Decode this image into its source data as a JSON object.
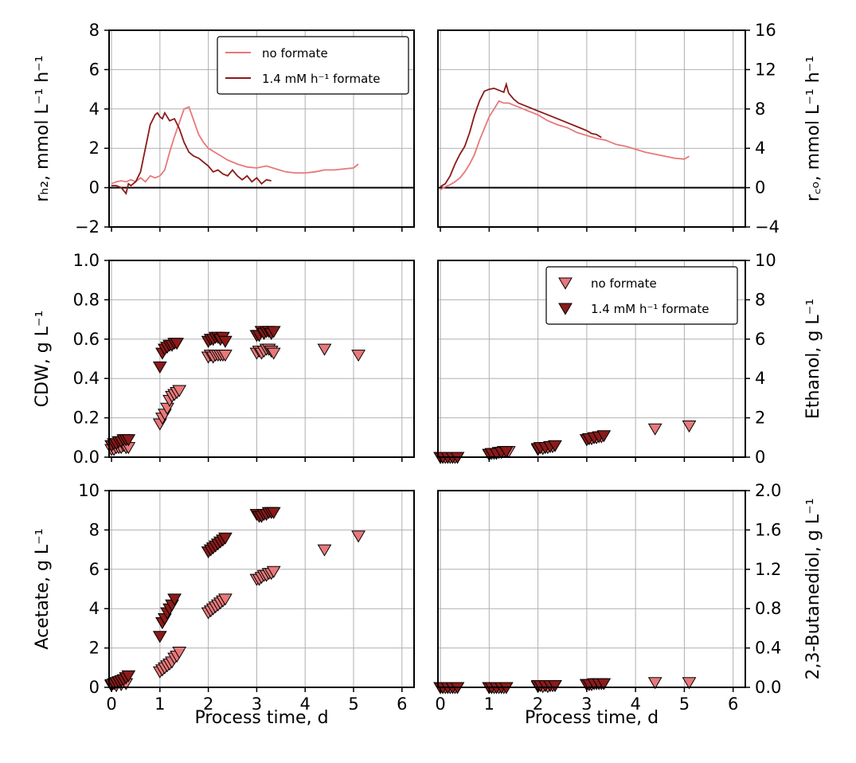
{
  "figure": {
    "xlabel": "Process time, d",
    "xticks": [
      0,
      1,
      2,
      3,
      4,
      5,
      6
    ],
    "xlim": [
      -0.05,
      6.25
    ],
    "series_names": [
      "no formate",
      "1.4 mM h⁻¹ formate"
    ],
    "colors": {
      "no_formate": "#e8787a",
      "formate": "#8b1a1a",
      "axis": "#000000",
      "grid": "#b0b0b0"
    }
  },
  "chart_data": [
    {
      "id": "rH2",
      "type": "line",
      "position": "top-left",
      "ylabel": "rₕ₂, mmol L⁻¹ h⁻¹",
      "ylim": [
        -2,
        8
      ],
      "yticks": [
        -2,
        0,
        2,
        4,
        6,
        8
      ],
      "ytick_labels": [
        "−2",
        "0",
        "2",
        "4",
        "6",
        "8"
      ],
      "zero_line": true,
      "grid": true,
      "legend": "top-right",
      "series": [
        {
          "name": "no formate",
          "x": [
            0,
            0.1,
            0.2,
            0.3,
            0.4,
            0.5,
            0.6,
            0.7,
            0.8,
            0.9,
            1.0,
            1.1,
            1.2,
            1.3,
            1.4,
            1.5,
            1.6,
            1.7,
            1.8,
            1.9,
            2.0,
            2.2,
            2.4,
            2.6,
            2.8,
            3.0,
            3.2,
            3.4,
            3.6,
            3.8,
            4.0,
            4.2,
            4.4,
            4.6,
            4.8,
            5.0,
            5.1
          ],
          "y": [
            0.2,
            0.3,
            0.35,
            0.3,
            0.4,
            0.3,
            0.5,
            0.3,
            0.6,
            0.5,
            0.6,
            0.9,
            1.8,
            2.6,
            3.3,
            4.0,
            4.1,
            3.4,
            2.7,
            2.3,
            2.0,
            1.7,
            1.4,
            1.2,
            1.05,
            1.0,
            1.1,
            0.95,
            0.8,
            0.75,
            0.75,
            0.8,
            0.9,
            0.9,
            0.95,
            1.0,
            1.2
          ]
        },
        {
          "name": "1.4 mM h⁻¹ formate",
          "x": [
            0,
            0.1,
            0.2,
            0.3,
            0.35,
            0.4,
            0.5,
            0.6,
            0.7,
            0.8,
            0.9,
            0.95,
            1.0,
            1.05,
            1.1,
            1.2,
            1.3,
            1.4,
            1.5,
            1.6,
            1.7,
            1.8,
            1.9,
            2.0,
            2.1,
            2.2,
            2.3,
            2.4,
            2.5,
            2.6,
            2.7,
            2.8,
            2.9,
            3.0,
            3.1,
            3.2,
            3.3
          ],
          "y": [
            0.1,
            0.1,
            0.0,
            -0.3,
            0.2,
            0.1,
            0.3,
            0.8,
            2.0,
            3.2,
            3.7,
            3.8,
            3.6,
            3.5,
            3.8,
            3.4,
            3.5,
            3.0,
            2.3,
            1.8,
            1.6,
            1.5,
            1.3,
            1.1,
            0.8,
            0.9,
            0.7,
            0.6,
            0.9,
            0.6,
            0.4,
            0.6,
            0.3,
            0.5,
            0.2,
            0.4,
            0.35
          ]
        }
      ]
    },
    {
      "id": "rCO",
      "type": "line",
      "position": "top-right",
      "ylabel": "r꜀ₒ, mmol L⁻¹ h⁻¹",
      "ylim": [
        -4,
        16
      ],
      "yticks": [
        -4,
        0,
        4,
        8,
        12,
        16
      ],
      "ytick_labels": [
        "−4",
        "0",
        "4",
        "8",
        "12",
        "16"
      ],
      "zero_line": true,
      "grid": true,
      "series": [
        {
          "name": "no formate",
          "x": [
            0,
            0.1,
            0.2,
            0.3,
            0.4,
            0.5,
            0.6,
            0.7,
            0.8,
            0.9,
            1.0,
            1.1,
            1.2,
            1.3,
            1.4,
            1.5,
            1.6,
            1.8,
            2.0,
            2.2,
            2.4,
            2.6,
            2.8,
            3.0,
            3.2,
            3.4,
            3.6,
            3.8,
            4.0,
            4.2,
            4.4,
            4.6,
            4.8,
            5.0,
            5.1
          ],
          "y": [
            -0.2,
            0.1,
            0.3,
            0.6,
            1.0,
            1.6,
            2.4,
            3.4,
            4.8,
            6.0,
            7.2,
            8.0,
            8.8,
            8.6,
            8.6,
            8.4,
            8.2,
            7.8,
            7.4,
            6.8,
            6.4,
            6.1,
            5.6,
            5.3,
            5.0,
            4.8,
            4.4,
            4.2,
            3.9,
            3.6,
            3.4,
            3.2,
            3.0,
            2.9,
            3.2
          ]
        },
        {
          "name": "1.4 mM h⁻¹ formate",
          "x": [
            0,
            0.1,
            0.2,
            0.3,
            0.4,
            0.5,
            0.6,
            0.7,
            0.8,
            0.9,
            1.0,
            1.1,
            1.2,
            1.3,
            1.35,
            1.4,
            1.5,
            1.6,
            1.8,
            2.0,
            2.2,
            2.4,
            2.6,
            2.8,
            3.0,
            3.1,
            3.2,
            3.3
          ],
          "y": [
            0.1,
            0.4,
            1.2,
            2.4,
            3.4,
            4.2,
            5.6,
            7.4,
            8.8,
            9.8,
            10.0,
            10.1,
            9.9,
            9.7,
            10.5,
            9.6,
            9.0,
            8.6,
            8.2,
            7.8,
            7.4,
            7.0,
            6.6,
            6.2,
            5.8,
            5.5,
            5.4,
            5.1
          ]
        }
      ]
    },
    {
      "id": "CDW",
      "type": "scatter",
      "position": "middle-left",
      "ylabel": "CDW, g L⁻¹",
      "ylim": [
        0,
        1
      ],
      "yticks": [
        0,
        0.2,
        0.4,
        0.6,
        0.8,
        1.0
      ],
      "ytick_labels": [
        "0.0",
        "0.2",
        "0.4",
        "0.6",
        "0.8",
        "1.0"
      ],
      "grid": true,
      "series": [
        {
          "name": "no formate",
          "x": [
            0.0,
            0.05,
            0.1,
            0.15,
            0.2,
            0.25,
            0.3,
            0.35,
            1.0,
            1.05,
            1.1,
            1.15,
            1.2,
            1.25,
            1.3,
            1.35,
            1.4,
            2.0,
            2.05,
            2.1,
            2.15,
            2.2,
            2.25,
            2.3,
            2.35,
            3.0,
            3.05,
            3.1,
            3.15,
            3.2,
            3.25,
            3.3,
            3.35,
            4.4,
            5.1
          ],
          "y": [
            0.04,
            0.04,
            0.05,
            0.05,
            0.05,
            0.06,
            0.05,
            0.05,
            0.17,
            0.2,
            0.22,
            0.25,
            0.29,
            0.31,
            0.32,
            0.33,
            0.34,
            0.51,
            0.52,
            0.51,
            0.52,
            0.52,
            0.52,
            0.52,
            0.52,
            0.53,
            0.54,
            0.53,
            0.54,
            0.55,
            0.55,
            0.54,
            0.53,
            0.55,
            0.52
          ]
        },
        {
          "name": "1.4 mM h⁻¹ formate",
          "x": [
            0.0,
            0.05,
            0.1,
            0.15,
            0.2,
            0.25,
            0.3,
            0.35,
            1.0,
            1.05,
            1.1,
            1.15,
            1.2,
            1.25,
            1.3,
            1.35,
            2.0,
            2.05,
            2.1,
            2.15,
            2.2,
            2.25,
            2.3,
            2.35,
            3.0,
            3.05,
            3.1,
            3.15,
            3.2,
            3.25,
            3.3,
            3.35
          ],
          "y": [
            0.06,
            0.07,
            0.07,
            0.08,
            0.08,
            0.09,
            0.09,
            0.09,
            0.46,
            0.53,
            0.55,
            0.56,
            0.57,
            0.57,
            0.58,
            0.58,
            0.59,
            0.6,
            0.6,
            0.61,
            0.61,
            0.6,
            0.61,
            0.59,
            0.62,
            0.62,
            0.64,
            0.63,
            0.64,
            0.64,
            0.63,
            0.64
          ]
        }
      ]
    },
    {
      "id": "Ethanol",
      "type": "scatter",
      "position": "middle-right",
      "ylabel": "Ethanol, g L⁻¹",
      "ylim": [
        0,
        10
      ],
      "yticks": [
        0,
        2,
        4,
        6,
        8,
        10
      ],
      "ytick_labels": [
        "0",
        "2",
        "4",
        "6",
        "8",
        "10"
      ],
      "grid": true,
      "legend": "top-right",
      "series": [
        {
          "name": "no formate",
          "x": [
            0.0,
            0.1,
            0.2,
            0.3,
            1.0,
            1.1,
            1.2,
            1.3,
            1.4,
            2.0,
            2.1,
            2.2,
            2.3,
            3.0,
            3.1,
            3.2,
            3.3,
            4.4,
            5.1
          ],
          "y": [
            0.0,
            0.0,
            0.0,
            0.0,
            0.15,
            0.2,
            0.25,
            0.3,
            0.3,
            0.4,
            0.45,
            0.5,
            0.55,
            0.9,
            0.95,
            1.0,
            1.05,
            1.45,
            1.6
          ]
        },
        {
          "name": "1.4 mM h⁻¹ formate",
          "x": [
            0.0,
            0.05,
            0.15,
            0.25,
            0.35,
            1.0,
            1.05,
            1.15,
            1.25,
            1.35,
            2.0,
            2.05,
            2.15,
            2.25,
            2.35,
            3.0,
            3.05,
            3.15,
            3.25,
            3.35
          ],
          "y": [
            0.0,
            0.0,
            0.0,
            0.0,
            0.0,
            0.15,
            0.2,
            0.2,
            0.25,
            0.3,
            0.45,
            0.5,
            0.5,
            0.55,
            0.6,
            0.9,
            0.95,
            1.0,
            1.05,
            1.1
          ]
        }
      ]
    },
    {
      "id": "Acetate",
      "type": "scatter",
      "position": "bottom-left",
      "ylabel": "Acetate, g L⁻¹",
      "ylim": [
        0,
        10
      ],
      "yticks": [
        0,
        2,
        4,
        6,
        8,
        10
      ],
      "ytick_labels": [
        "0",
        "2",
        "4",
        "6",
        "8",
        "10"
      ],
      "grid": true,
      "series": [
        {
          "name": "no formate",
          "x": [
            0.0,
            0.1,
            0.2,
            0.3,
            1.0,
            1.05,
            1.1,
            1.15,
            1.2,
            1.25,
            1.3,
            1.35,
            1.4,
            2.0,
            2.05,
            2.1,
            2.15,
            2.2,
            2.25,
            2.3,
            2.35,
            3.0,
            3.05,
            3.1,
            3.15,
            3.2,
            3.25,
            3.3,
            3.35,
            4.4,
            5.1
          ],
          "y": [
            0.1,
            0.1,
            0.15,
            0.2,
            0.8,
            0.9,
            1.0,
            1.1,
            1.2,
            1.3,
            1.5,
            1.6,
            1.8,
            3.8,
            3.9,
            4.0,
            4.1,
            4.2,
            4.3,
            4.4,
            4.5,
            5.5,
            5.5,
            5.6,
            5.7,
            5.7,
            5.8,
            5.8,
            5.9,
            7.0,
            7.7
          ]
        },
        {
          "name": "1.4 mM h⁻¹ formate",
          "x": [
            0.0,
            0.05,
            0.1,
            0.15,
            0.2,
            0.25,
            0.3,
            0.35,
            1.0,
            1.05,
            1.1,
            1.15,
            1.2,
            1.25,
            1.3,
            2.0,
            2.05,
            2.1,
            2.15,
            2.2,
            2.25,
            2.3,
            2.35,
            3.0,
            3.05,
            3.1,
            3.15,
            3.2,
            3.25,
            3.3,
            3.35
          ],
          "y": [
            0.15,
            0.2,
            0.25,
            0.3,
            0.35,
            0.4,
            0.5,
            0.6,
            2.6,
            3.3,
            3.5,
            3.8,
            4.0,
            4.2,
            4.5,
            6.9,
            7.0,
            7.1,
            7.2,
            7.3,
            7.4,
            7.5,
            7.6,
            8.8,
            8.7,
            8.7,
            8.8,
            8.8,
            8.9,
            8.9,
            8.9
          ]
        }
      ]
    },
    {
      "id": "Butanediol",
      "type": "scatter",
      "position": "bottom-right",
      "ylabel": "2,3-Butanediol, g L⁻¹",
      "ylim": [
        0,
        2
      ],
      "yticks": [
        0,
        0.4,
        0.8,
        1.2,
        1.6,
        2.0
      ],
      "ytick_labels": [
        "0.0",
        "0.4",
        "0.8",
        "1.2",
        "1.6",
        "2.0"
      ],
      "grid": true,
      "series": [
        {
          "name": "no formate",
          "x": [
            0.0,
            0.1,
            0.2,
            0.3,
            1.0,
            1.1,
            1.2,
            1.3,
            2.0,
            2.1,
            2.2,
            2.3,
            3.0,
            3.1,
            3.2,
            3.3,
            4.4,
            5.1
          ],
          "y": [
            0.0,
            0.0,
            0.0,
            0.0,
            0.0,
            0.0,
            0.0,
            0.0,
            0.01,
            0.01,
            0.01,
            0.02,
            0.03,
            0.03,
            0.04,
            0.04,
            0.05,
            0.05
          ]
        },
        {
          "name": "1.4 mM h⁻¹ formate",
          "x": [
            0.0,
            0.05,
            0.15,
            0.25,
            0.35,
            1.0,
            1.05,
            1.15,
            1.25,
            1.35,
            2.0,
            2.05,
            2.15,
            2.25,
            2.35,
            3.0,
            3.05,
            3.15,
            3.25,
            3.35
          ],
          "y": [
            0.0,
            0.0,
            0.0,
            0.0,
            0.0,
            0.0,
            0.0,
            0.0,
            0.0,
            0.0,
            0.02,
            0.02,
            0.02,
            0.02,
            0.02,
            0.03,
            0.03,
            0.04,
            0.04,
            0.04
          ]
        }
      ]
    }
  ]
}
